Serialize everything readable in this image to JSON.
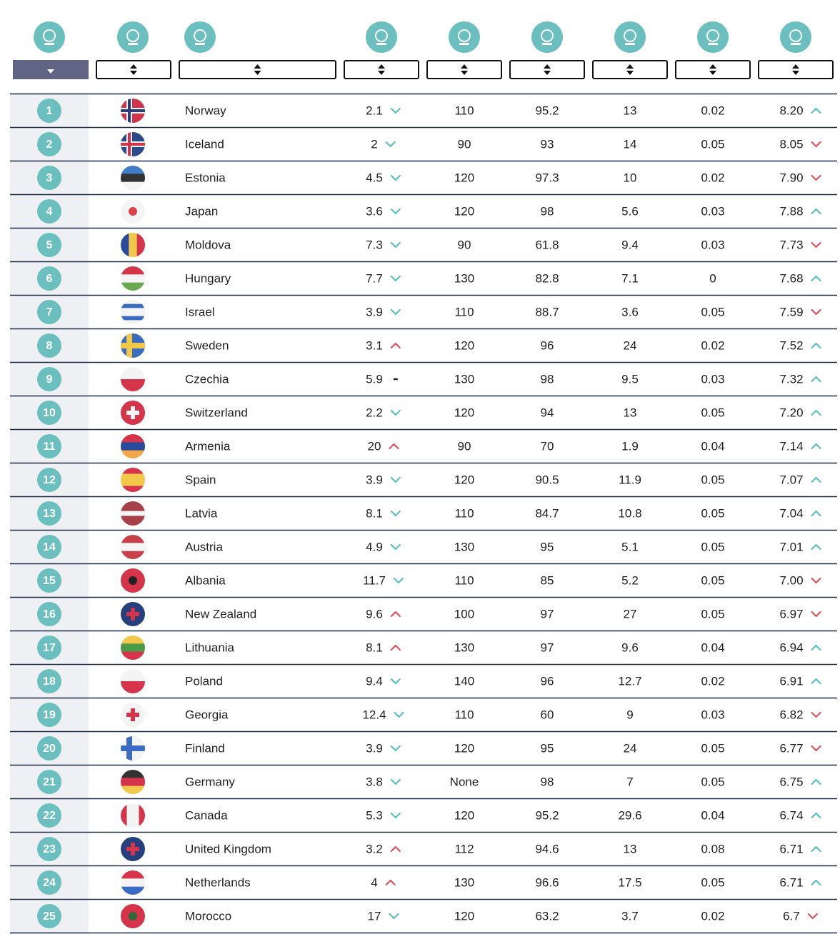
{
  "table": {
    "trend_colors": {
      "road": {
        "up": "#e0505c",
        "down": "#5bbfc0",
        "flat": "#222"
      },
      "score": {
        "up": "#5bbfc0",
        "down": "#e0505c",
        "flat": "#222"
      }
    },
    "rows": [
      {
        "rank": "1",
        "name": "Norway",
        "flag": {
          "bg": "#d1344a",
          "cross": "#f4f4f4",
          "inner": "#24407e"
        },
        "road": "2.1",
        "road_trend": "down",
        "speed": "110",
        "car": "95.2",
        "drink": "13",
        "bac": "0.02",
        "score": "8.20",
        "score_trend": "up"
      },
      {
        "rank": "2",
        "name": "Iceland",
        "flag": {
          "bg": "#2a4a8c",
          "cross": "#f4f4f4",
          "inner": "#d1344a"
        },
        "road": "2",
        "road_trend": "down",
        "speed": "90",
        "car": "93",
        "drink": "14",
        "bac": "0.05",
        "score": "8.05",
        "score_trend": "down"
      },
      {
        "rank": "3",
        "name": "Estonia",
        "flag": {
          "stripes": [
            "#3f7dc9",
            "#333333",
            "#f4f4f4"
          ],
          "dir": "h"
        },
        "road": "4.5",
        "road_trend": "down",
        "speed": "120",
        "car": "97.3",
        "drink": "10",
        "bac": "0.02",
        "score": "7.90",
        "score_trend": "down"
      },
      {
        "rank": "4",
        "name": "Japan",
        "flag": {
          "bg": "#f4f4f4",
          "disc": "#e0404a"
        },
        "road": "3.6",
        "road_trend": "down",
        "speed": "120",
        "car": "98",
        "drink": "5.6",
        "bac": "0.03",
        "score": "7.88",
        "score_trend": "up"
      },
      {
        "rank": "5",
        "name": "Moldova",
        "flag": {
          "stripes": [
            "#2a4a9c",
            "#f2c84a",
            "#d6344a"
          ],
          "dir": "v"
        },
        "road": "7.3",
        "road_trend": "down",
        "speed": "90",
        "car": "61.8",
        "drink": "9.4",
        "bac": "0.03",
        "score": "7.73",
        "score_trend": "down"
      },
      {
        "rank": "6",
        "name": "Hungary",
        "flag": {
          "stripes": [
            "#d6344a",
            "#f4f4f4",
            "#6aa84f"
          ],
          "dir": "h"
        },
        "road": "7.7",
        "road_trend": "down",
        "speed": "130",
        "car": "82.8",
        "drink": "7.1",
        "bac": "0",
        "score": "7.68",
        "score_trend": "up"
      },
      {
        "rank": "7",
        "name": "Israel",
        "flag": {
          "stripes": [
            "#f4f4f4",
            "#3a6cc4",
            "#f4f4f4",
            "#f4f4f4",
            "#3a6cc4",
            "#f4f4f4"
          ],
          "dir": "h"
        },
        "road": "3.9",
        "road_trend": "down",
        "speed": "110",
        "car": "88.7",
        "drink": "3.6",
        "bac": "0.05",
        "score": "7.59",
        "score_trend": "down"
      },
      {
        "rank": "8",
        "name": "Sweden",
        "flag": {
          "bg": "#3a6cc4",
          "cross": "#f2c84a"
        },
        "road": "3.1",
        "road_trend": "up",
        "speed": "120",
        "car": "96",
        "drink": "24",
        "bac": "0.02",
        "score": "7.52",
        "score_trend": "up"
      },
      {
        "rank": "9",
        "name": "Czechia",
        "flag": {
          "stripes": [
            "#f4f4f4",
            "#d6344a"
          ],
          "dir": "h"
        },
        "road": "5.9",
        "road_trend": "flat",
        "speed": "130",
        "car": "98",
        "drink": "9.5",
        "bac": "0.03",
        "score": "7.32",
        "score_trend": "up"
      },
      {
        "rank": "10",
        "name": "Switzerland",
        "flag": {
          "bg": "#d6344a",
          "plus": "#f4f4f4"
        },
        "road": "2.2",
        "road_trend": "down",
        "speed": "120",
        "car": "94",
        "drink": "13",
        "bac": "0.05",
        "score": "7.20",
        "score_trend": "up"
      },
      {
        "rank": "11",
        "name": "Armenia",
        "flag": {
          "stripes": [
            "#d6344a",
            "#2a4a9c",
            "#f2a84a"
          ],
          "dir": "h"
        },
        "road": "20",
        "road_trend": "up",
        "speed": "90",
        "car": "70",
        "drink": "1.9",
        "bac": "0.04",
        "score": "7.14",
        "score_trend": "up"
      },
      {
        "rank": "12",
        "name": "Spain",
        "flag": {
          "stripes": [
            "#d6344a",
            "#f2c84a",
            "#f2c84a",
            "#d6344a"
          ],
          "dir": "h"
        },
        "road": "3.9",
        "road_trend": "down",
        "speed": "120",
        "car": "90.5",
        "drink": "11.9",
        "bac": "0.05",
        "score": "7.07",
        "score_trend": "up"
      },
      {
        "rank": "13",
        "name": "Latvia",
        "flag": {
          "stripes": [
            "#a8404a",
            "#a8404a",
            "#f4f4f4",
            "#a8404a",
            "#a8404a"
          ],
          "dir": "h"
        },
        "road": "8.1",
        "road_trend": "down",
        "speed": "110",
        "car": "84.7",
        "drink": "10.8",
        "bac": "0.05",
        "score": "7.04",
        "score_trend": "up"
      },
      {
        "rank": "14",
        "name": "Austria",
        "flag": {
          "stripes": [
            "#c8404a",
            "#f4f4f4",
            "#c8404a"
          ],
          "dir": "h"
        },
        "road": "4.9",
        "road_trend": "down",
        "speed": "130",
        "car": "95",
        "drink": "5.1",
        "bac": "0.05",
        "score": "7.01",
        "score_trend": "up"
      },
      {
        "rank": "15",
        "name": "Albania",
        "flag": {
          "bg": "#d6344a",
          "disc": "#222222"
        },
        "road": "11.7",
        "road_trend": "down",
        "speed": "110",
        "car": "85",
        "drink": "5.2",
        "bac": "0.05",
        "score": "7.00",
        "score_trend": "down"
      },
      {
        "rank": "16",
        "name": "New Zealand",
        "flag": {
          "bg": "#24407e",
          "plus": "#d6344a"
        },
        "road": "9.6",
        "road_trend": "up",
        "speed": "100",
        "car": "97",
        "drink": "27",
        "bac": "0.05",
        "score": "6.97",
        "score_trend": "down"
      },
      {
        "rank": "17",
        "name": "Lithuania",
        "flag": {
          "stripes": [
            "#f2c84a",
            "#4a9a4a",
            "#d6344a"
          ],
          "dir": "h"
        },
        "road": "8.1",
        "road_trend": "up",
        "speed": "130",
        "car": "97",
        "drink": "9.6",
        "bac": "0.04",
        "score": "6.94",
        "score_trend": "up"
      },
      {
        "rank": "18",
        "name": "Poland",
        "flag": {
          "stripes": [
            "#f4f4f4",
            "#d6344a"
          ],
          "dir": "h"
        },
        "road": "9.4",
        "road_trend": "down",
        "speed": "140",
        "car": "96",
        "drink": "12.7",
        "bac": "0.02",
        "score": "6.91",
        "score_trend": "up"
      },
      {
        "rank": "19",
        "name": "Georgia",
        "flag": {
          "bg": "#f4f4f4",
          "plus": "#d6344a"
        },
        "road": "12.4",
        "road_trend": "down",
        "speed": "110",
        "car": "60",
        "drink": "9",
        "bac": "0.03",
        "score": "6.82",
        "score_trend": "down"
      },
      {
        "rank": "20",
        "name": "Finland",
        "flag": {
          "bg": "#f4f4f4",
          "cross": "#3a6cc4"
        },
        "road": "3.9",
        "road_trend": "down",
        "speed": "120",
        "car": "95",
        "drink": "24",
        "bac": "0.05",
        "score": "6.77",
        "score_trend": "down"
      },
      {
        "rank": "21",
        "name": "Germany",
        "flag": {
          "stripes": [
            "#333333",
            "#d6344a",
            "#f2c84a"
          ],
          "dir": "h"
        },
        "road": "3.8",
        "road_trend": "down",
        "speed": "None",
        "car": "98",
        "drink": "7",
        "bac": "0.05",
        "score": "6.75",
        "score_trend": "up"
      },
      {
        "rank": "22",
        "name": "Canada",
        "flag": {
          "stripes": [
            "#d6344a",
            "#f4f4f4",
            "#f4f4f4",
            "#d6344a"
          ],
          "dir": "v"
        },
        "road": "5.3",
        "road_trend": "down",
        "speed": "120",
        "car": "95.2",
        "drink": "29.6",
        "bac": "0.04",
        "score": "6.74",
        "score_trend": "up"
      },
      {
        "rank": "23",
        "name": "United Kingdom",
        "flag": {
          "bg": "#24407e",
          "plus": "#d6344a"
        },
        "road": "3.2",
        "road_trend": "up",
        "speed": "112",
        "car": "94.6",
        "drink": "13",
        "bac": "0.08",
        "score": "6.71",
        "score_trend": "up"
      },
      {
        "rank": "24",
        "name": "Netherlands",
        "flag": {
          "stripes": [
            "#d6344a",
            "#f4f4f4",
            "#3a6cc4"
          ],
          "dir": "h"
        },
        "road": "4",
        "road_trend": "up",
        "speed": "130",
        "car": "96.6",
        "drink": "17.5",
        "bac": "0.05",
        "score": "6.71",
        "score_trend": "up"
      },
      {
        "rank": "25",
        "name": "Morocco",
        "flag": {
          "bg": "#d6344a",
          "disc": "#2a6a3a"
        },
        "road": "17",
        "road_trend": "down",
        "speed": "120",
        "car": "63.2",
        "drink": "3.7",
        "bac": "0.02",
        "score": "6.7",
        "score_trend": "down"
      }
    ]
  }
}
